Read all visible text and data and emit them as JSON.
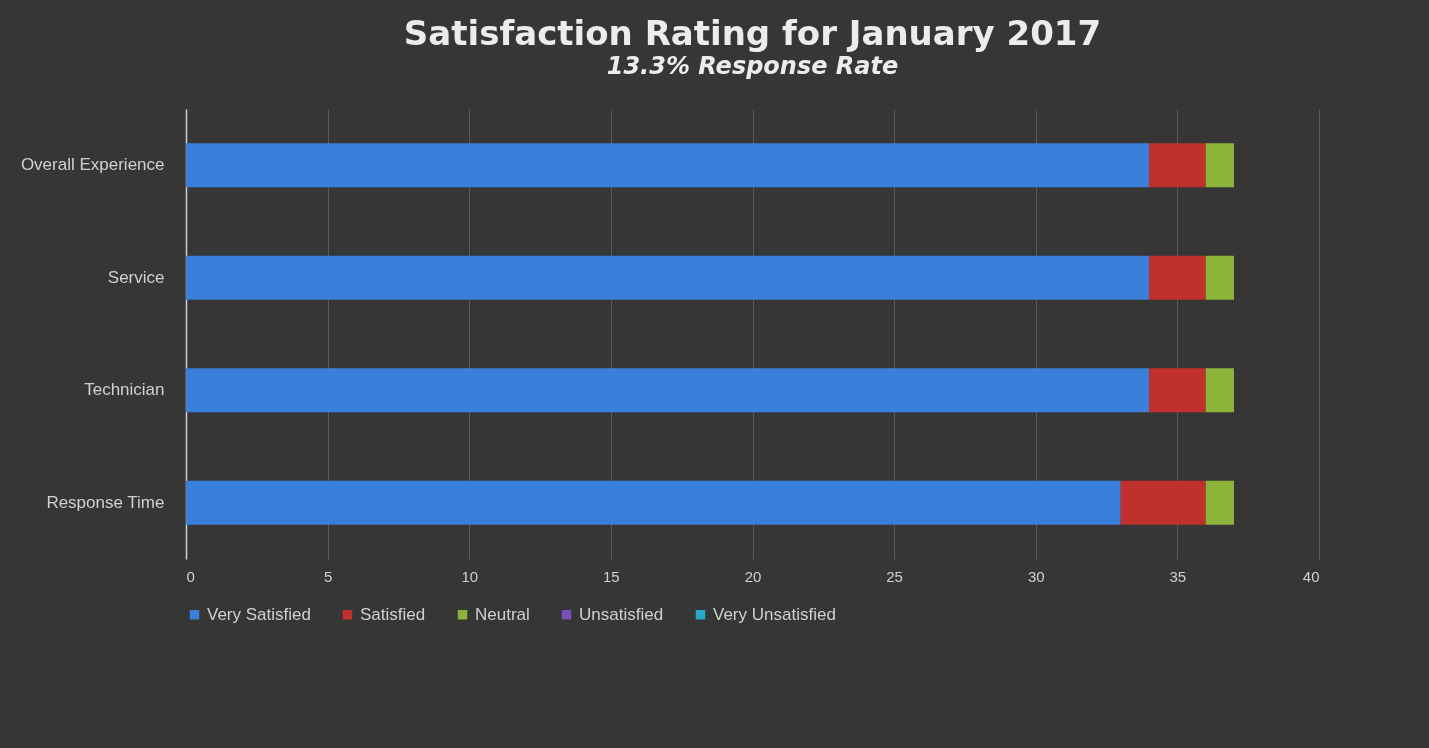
{
  "chart_data": {
    "type": "bar",
    "orientation": "horizontal",
    "stacked": true,
    "title": "Satisfaction Rating for January 2017",
    "subtitle": "13.3% Response Rate",
    "categories": [
      "Overall Experience",
      "Service",
      "Technician",
      "Response Time"
    ],
    "series": [
      {
        "name": "Very Satisfied",
        "color": "#3a7fd9",
        "values": [
          34,
          34,
          34,
          33
        ]
      },
      {
        "name": "Satisfied",
        "color": "#c0302c",
        "values": [
          2,
          2,
          2,
          3
        ]
      },
      {
        "name": "Neutral",
        "color": "#8db43a",
        "values": [
          1,
          1,
          1,
          1
        ]
      },
      {
        "name": "Unsatisfied",
        "color": "#7b4fb8",
        "values": [
          0,
          0,
          0,
          0
        ]
      },
      {
        "name": "Very Unsatisfied",
        "color": "#28a8c9",
        "values": [
          0,
          0,
          0,
          0
        ]
      }
    ],
    "xlim": [
      0,
      40
    ],
    "xticks": [
      0,
      5,
      10,
      15,
      20,
      25,
      30,
      35,
      40
    ],
    "grid": "x",
    "legend": "bottom"
  }
}
